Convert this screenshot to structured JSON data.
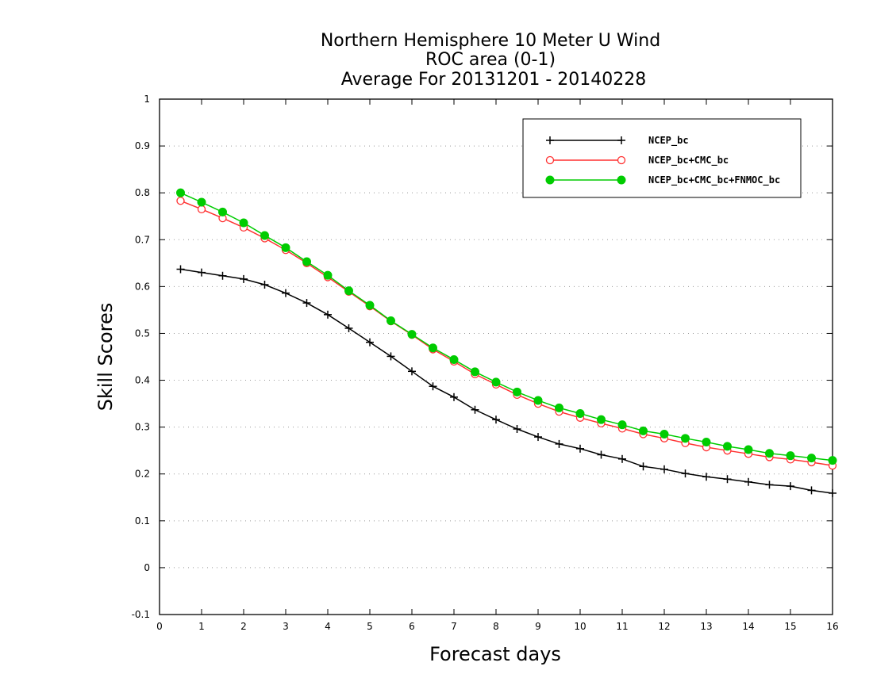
{
  "chart_data": {
    "type": "line",
    "title": "Northern Hemisphere 10 Meter U Wind",
    "subtitle": "ROC area (0-1)",
    "subtitle2": "Average For 20131201 - 20140228",
    "xlabel": "Forecast days",
    "ylabel": "Skill Scores",
    "xlim": [
      0,
      16
    ],
    "ylim": [
      -0.1,
      1
    ],
    "x_ticks": [
      "0",
      "1",
      "2",
      "3",
      "4",
      "5",
      "6",
      "7",
      "8",
      "9",
      "10",
      "11",
      "12",
      "13",
      "14",
      "15",
      "16"
    ],
    "y_ticks": [
      "-0.1",
      "0",
      "0.1",
      "0.2",
      "0.3",
      "0.4",
      "0.5",
      "0.6",
      "0.7",
      "0.8",
      "0.9",
      "1"
    ],
    "grid": "horizontal dotted",
    "legend_position": "top-right",
    "x": [
      0.5,
      1,
      1.5,
      2,
      2.5,
      3,
      3.5,
      4,
      4.5,
      5,
      5.5,
      6,
      6.5,
      7,
      7.5,
      8,
      8.5,
      9,
      9.5,
      10,
      10.5,
      11,
      11.5,
      12,
      12.5,
      13,
      13.5,
      14,
      14.5,
      15,
      15.5,
      16
    ],
    "series": [
      {
        "name": "NCEP_bc",
        "color": "#000000",
        "marker": "plus",
        "values": [
          0.637,
          0.63,
          0.623,
          0.616,
          0.604,
          0.586,
          0.565,
          0.54,
          0.511,
          0.481,
          0.451,
          0.419,
          0.387,
          0.364,
          0.337,
          0.316,
          0.296,
          0.279,
          0.264,
          0.254,
          0.241,
          0.232,
          0.216,
          0.21,
          0.201,
          0.194,
          0.189,
          0.183,
          0.177,
          0.174,
          0.165,
          0.159
        ]
      },
      {
        "name": "NCEP_bc+CMC_bc",
        "color": "#ff3030",
        "marker": "open-circle",
        "values": [
          0.783,
          0.765,
          0.746,
          0.726,
          0.703,
          0.678,
          0.65,
          0.62,
          0.589,
          0.558,
          0.526,
          0.497,
          0.466,
          0.44,
          0.413,
          0.391,
          0.369,
          0.35,
          0.333,
          0.32,
          0.308,
          0.297,
          0.285,
          0.276,
          0.266,
          0.257,
          0.25,
          0.243,
          0.236,
          0.231,
          0.225,
          0.218
        ]
      },
      {
        "name": "NCEP_bc+CMC_bc+FNMOC_bc",
        "color": "#00cc00",
        "marker": "filled-circle",
        "values": [
          0.8,
          0.78,
          0.759,
          0.736,
          0.709,
          0.683,
          0.653,
          0.624,
          0.591,
          0.56,
          0.527,
          0.498,
          0.469,
          0.444,
          0.418,
          0.396,
          0.375,
          0.357,
          0.341,
          0.329,
          0.316,
          0.305,
          0.292,
          0.285,
          0.276,
          0.268,
          0.259,
          0.252,
          0.244,
          0.239,
          0.234,
          0.229
        ]
      }
    ]
  }
}
